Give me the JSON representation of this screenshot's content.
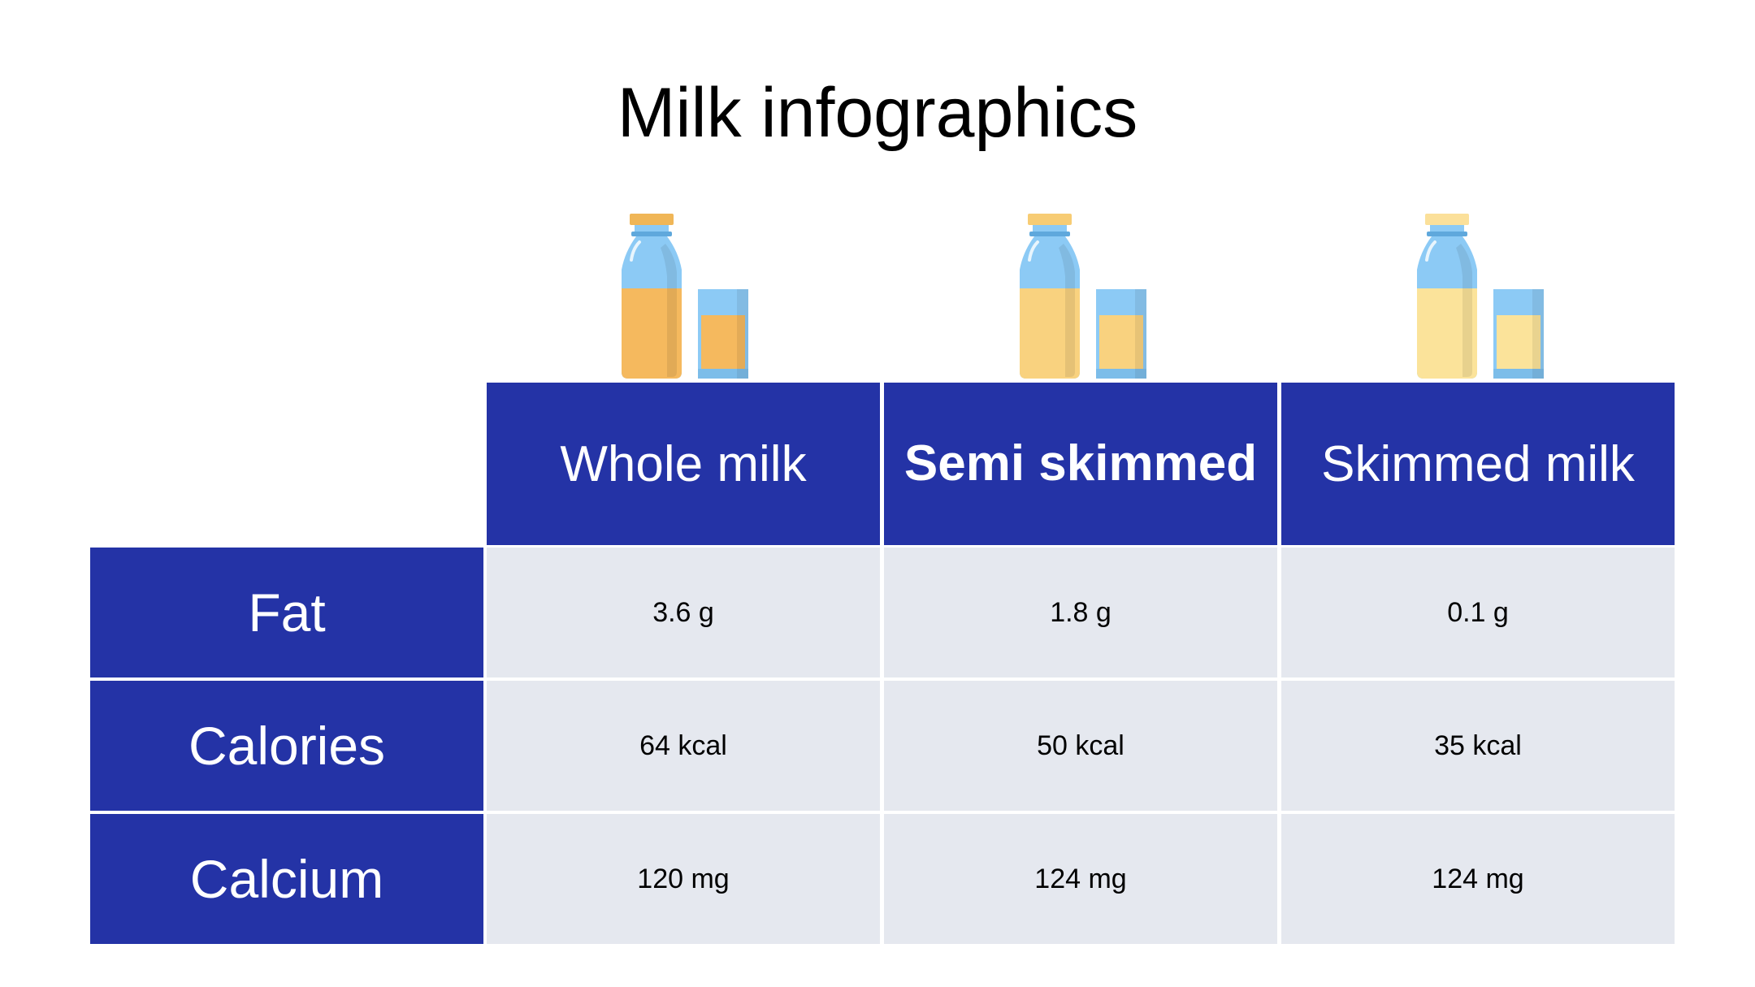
{
  "title": "Milk infographics",
  "colors": {
    "header_blue": "#2433a6",
    "cell_grey": "#e5e8ef",
    "bottle_blue": "#8ccaf5",
    "whole_milk_fill": "#f5b95e",
    "semi_skimmed_fill": "#f9d27f",
    "skimmed_fill": "#fbe39a"
  },
  "table": {
    "columns": [
      {
        "label": "Whole milk",
        "icon": "milk-bottle-glass-icon"
      },
      {
        "label": "Semi skimmed",
        "icon": "milk-bottle-glass-icon"
      },
      {
        "label": "Skimmed milk",
        "icon": "milk-bottle-glass-icon"
      }
    ],
    "rows": [
      {
        "label": "Fat",
        "values": [
          "3.6 g",
          "1.8 g",
          "0.1 g"
        ]
      },
      {
        "label": "Calories",
        "values": [
          "64 kcal",
          "50 kcal",
          "35 kcal"
        ]
      },
      {
        "label": "Calcium",
        "values": [
          "120 mg",
          "124 mg",
          "124 mg"
        ]
      }
    ]
  }
}
